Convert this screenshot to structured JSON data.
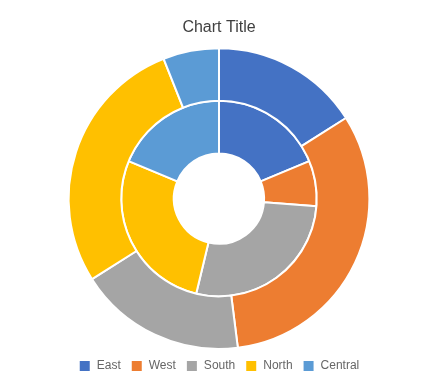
{
  "chart_data": {
    "type": "donut",
    "title": "Chart Title",
    "categories": [
      "East",
      "West",
      "South",
      "North",
      "Central"
    ],
    "series": [
      {
        "values": [
          16,
          32,
          18,
          28,
          6
        ]
      },
      {
        "values": [
          15,
          6,
          22,
          22,
          15
        ]
      }
    ],
    "colors": [
      "#4472c4",
      "#ed7d31",
      "#a5a5a5",
      "#ffc000",
      "#5b9bd5"
    ],
    "legend": "bottom"
  }
}
